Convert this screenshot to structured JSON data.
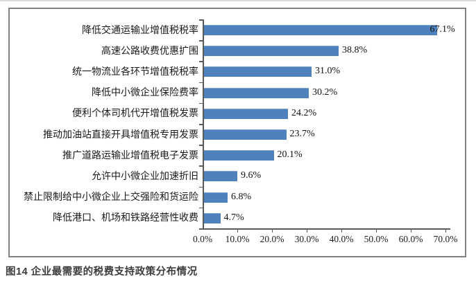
{
  "page": {
    "caption": "图14 企业最需要的税费支持政策分布情况"
  },
  "chart_data": {
    "type": "bar",
    "orientation": "horizontal",
    "title": "",
    "xlabel": "",
    "ylabel": "",
    "categories": [
      "降低交通运输业增值税税率",
      "高速公路收费优惠扩围",
      "统一物流业各环节增值税税率",
      "降低中小微企业保险费率",
      "便利个体司机代开增值税发票",
      "推动加油站直接开具增值税专用发票",
      "推广道路运输业增值税电子发票",
      "允许中小微企业加速折旧",
      "禁止限制给中小微企业上交强险和货运险",
      "降低港口、机场和铁路经营性收费"
    ],
    "values": [
      67.1,
      38.8,
      31.0,
      30.2,
      24.2,
      23.7,
      20.1,
      9.6,
      6.8,
      4.7
    ],
    "value_labels": [
      "67.1%",
      "38.8%",
      "31.0%",
      "30.2%",
      "24.2%",
      "23.7%",
      "20.1%",
      "9.6%",
      "6.8%",
      "4.7%"
    ],
    "xlim": [
      0,
      70
    ],
    "x_tick_labels": [
      "0.0%",
      "10.0%",
      "20.0%",
      "30.0%",
      "40.0%",
      "50.0%",
      "60.0%",
      "70.0%"
    ],
    "bar_color": "#4f81bd",
    "grid": false,
    "legend_position": "none"
  }
}
